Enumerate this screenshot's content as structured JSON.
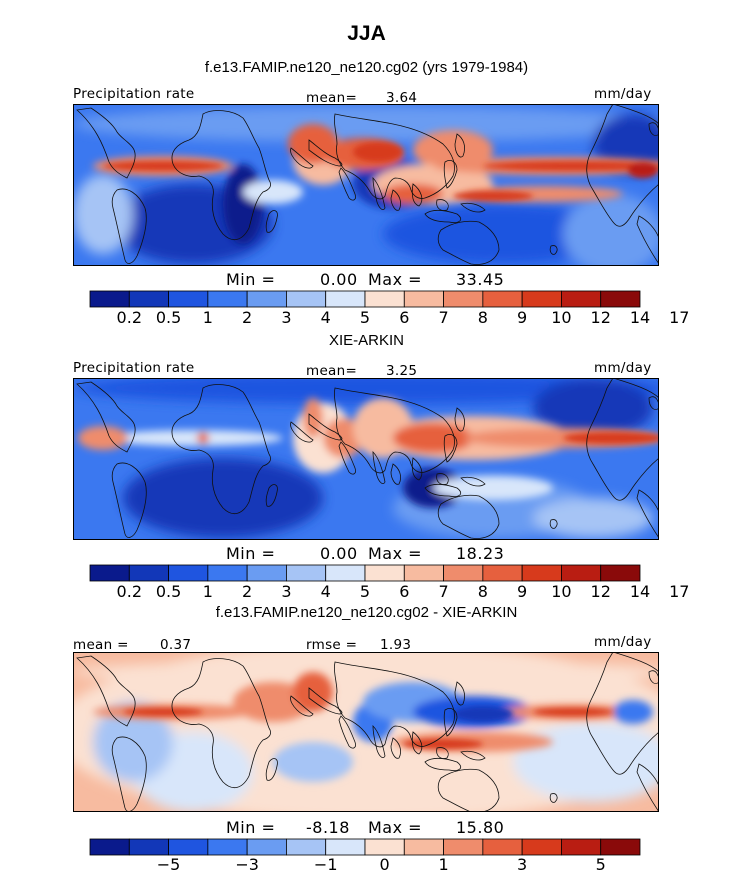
{
  "title": "JJA",
  "subtitle": "f.e13.FAMIP.ne120_ne120.cg02 (yrs 1979-1984)",
  "panels": [
    {
      "id": "model",
      "heading": "",
      "left_label": "Precipitation rate",
      "center_label": "mean=",
      "center_value": "3.64",
      "right_label": "mm/day",
      "min_label": "Min =",
      "min_value": "0.00",
      "max_label": "Max =",
      "max_value": "33.45",
      "colorbar": "precip"
    },
    {
      "id": "obs",
      "heading": "XIE-ARKIN",
      "left_label": "Precipitation rate",
      "center_label": "mean=",
      "center_value": "3.25",
      "right_label": "mm/day",
      "min_label": "Min =",
      "min_value": "0.00",
      "max_label": "Max =",
      "max_value": "18.23",
      "colorbar": "precip"
    },
    {
      "id": "diff",
      "heading": "f.e13.FAMIP.ne120_ne120.cg02 - XIE-ARKIN",
      "left_label": "mean =",
      "left_value": "0.37",
      "center_label": "rmse =",
      "center_value": "1.93",
      "right_label": "mm/day",
      "min_label": "Min =",
      "min_value": "-8.18",
      "max_label": "Max =",
      "max_value": "15.80",
      "colorbar": "diff"
    }
  ],
  "colorbars": {
    "precip": {
      "colors": [
        "#0a1a8c",
        "#1237b8",
        "#1f55e0",
        "#3b78f0",
        "#6a9cf2",
        "#a6c4f5",
        "#d8e6fa",
        "#fbe1d2",
        "#f7bba0",
        "#ef8c6c",
        "#e6603e",
        "#d73a1c",
        "#b91d12",
        "#8a0a0a"
      ],
      "labels": [
        "0.2",
        "0.5",
        "1",
        "2",
        "3",
        "4",
        "5",
        "6",
        "7",
        "8",
        "9",
        "10",
        "12",
        "14",
        "17"
      ]
    },
    "diff": {
      "colors": [
        "#0a1a8c",
        "#1237b8",
        "#1f55e0",
        "#3b78f0",
        "#6a9cf2",
        "#a6c4f5",
        "#d8e6fa",
        "#fbe1d2",
        "#f7bba0",
        "#ef8c6c",
        "#e6603e",
        "#d73a1c",
        "#b91d12",
        "#8a0a0a"
      ],
      "labels": [
        "-5",
        "-3",
        "-1",
        "0",
        "1",
        "3",
        "5"
      ]
    }
  }
}
